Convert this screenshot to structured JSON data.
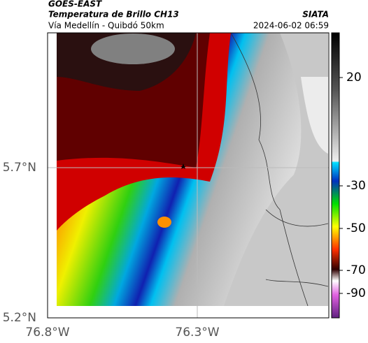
{
  "header": {
    "title": "GOES-EAST",
    "subtitle": "Temperatura de Brillo CH13",
    "route": "Vía Medellín - Quibdó 50km",
    "source": "SIATA",
    "timestamp": "2024-06-02 06:59"
  },
  "lat_labels": [
    "5.7°N",
    "5.2°N"
  ],
  "lon_labels": [
    "76.8°W",
    "76.3°W"
  ],
  "colorbar_ticks": [
    20,
    -30,
    -50,
    -70,
    -90
  ]
}
